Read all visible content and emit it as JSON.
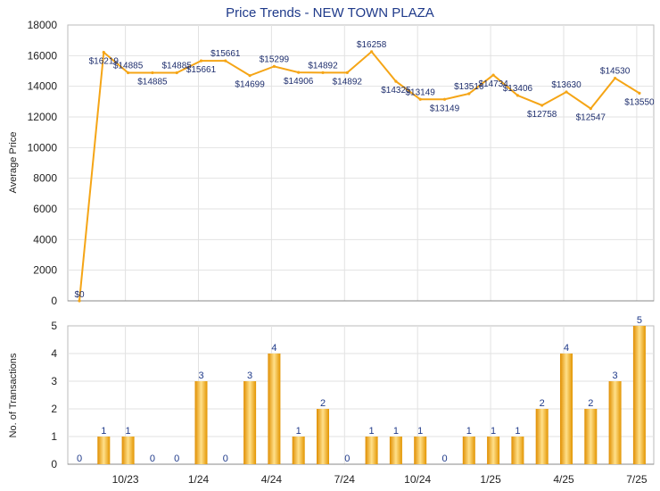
{
  "chart_data": [
    {
      "type": "line",
      "title": "Price Trends - NEW TOWN PLAZA",
      "ylabel": "Average Price",
      "ylim": [
        0,
        18000
      ],
      "yticks": [
        "0",
        "2000",
        "4000",
        "6000",
        "8000",
        "10000",
        "12000",
        "14000",
        "16000",
        "18000"
      ],
      "color": "#f5a516",
      "values": [
        0,
        16219,
        14885,
        14885,
        14885,
        15661,
        15661,
        14699,
        15299,
        14906,
        14892,
        14892,
        16258,
        14325,
        13149,
        13149,
        13516,
        14734,
        13406,
        12758,
        13630,
        12547,
        14530,
        13550
      ],
      "labels": [
        "$0",
        "$16219",
        "$14885",
        "$14885",
        "$14885",
        "$15661",
        "$15661",
        "$14699",
        "$15299",
        "$14906",
        "$14892",
        "$14892",
        "$16258",
        "$14325",
        "$13149",
        "$13149",
        "$13516",
        "$14734",
        "$13406",
        "$12758",
        "$13630",
        "$12547",
        "$14530",
        "$13550"
      ],
      "grid": true
    },
    {
      "type": "bar",
      "ylabel": "No. of Transactions",
      "ylim": [
        0,
        5
      ],
      "yticks": [
        "0",
        "1",
        "2",
        "3",
        "4",
        "5"
      ],
      "color": "#f5a516",
      "values": [
        0,
        1,
        1,
        0,
        0,
        3,
        0,
        3,
        4,
        1,
        2,
        0,
        1,
        1,
        1,
        0,
        1,
        1,
        1,
        2,
        4,
        2,
        3,
        5
      ],
      "xticks": [
        "10/23",
        "1/24",
        "4/24",
        "7/24",
        "10/24",
        "1/25",
        "4/25",
        "7/25"
      ],
      "grid": true
    }
  ]
}
